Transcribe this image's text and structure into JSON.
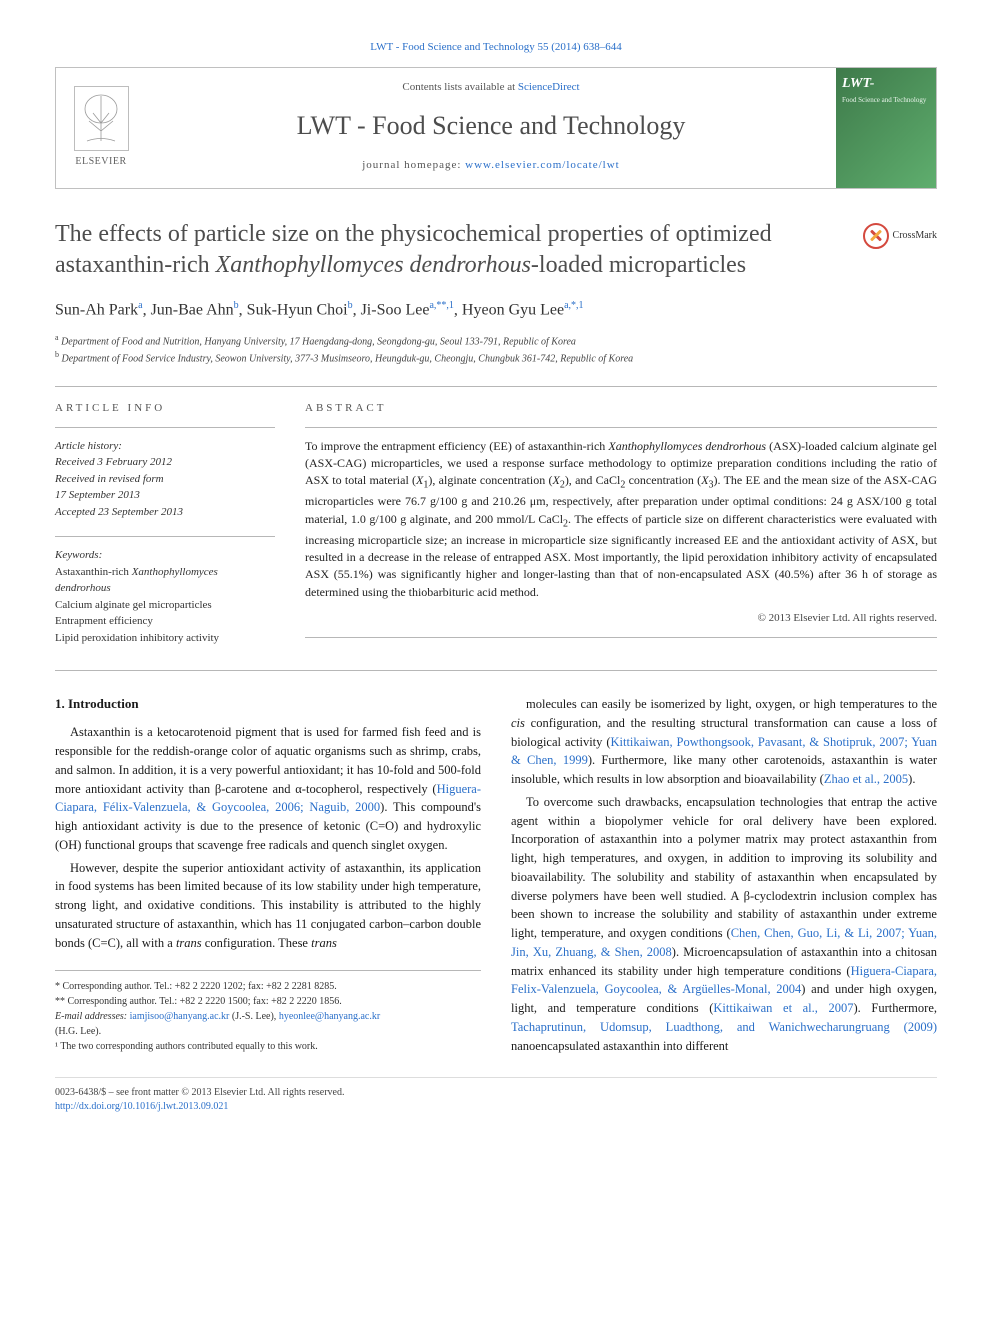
{
  "journal": {
    "ref_prefix": "LWT - Food Science and Technology 55 (2014) 638–644",
    "contents_prefix": "Contents lists available at ",
    "contents_link": "ScienceDirect",
    "name": "LWT - Food Science and Technology",
    "homepage_label": "journal homepage: ",
    "homepage_url": "www.elsevier.com/locate/lwt",
    "elsevier_label": "ELSEVIER",
    "cover_title": "LWT-",
    "cover_sub": "Food Science and Technology"
  },
  "crossmark": {
    "label": "CrossMark"
  },
  "article": {
    "title_pre": "The effects of particle size on the physicochemical properties of optimized astaxanthin-rich ",
    "title_em": "Xanthophyllomyces dendrorhous",
    "title_post": "-loaded microparticles",
    "authors_html": "Sun-Ah Park<sup>a</sup>, Jun-Bae Ahn<sup>b</sup>, Suk-Hyun Choi<sup>b</sup>, Ji-Soo Lee<sup>a,**,1</sup>, Hyeon Gyu Lee<sup>a,*,1</sup>",
    "affiliations": [
      {
        "sup": "a",
        "text": "Department of Food and Nutrition, Hanyang University, 17 Haengdang-dong, Seongdong-gu, Seoul 133-791, Republic of Korea"
      },
      {
        "sup": "b",
        "text": "Department of Food Service Industry, Seowon University, 377-3 Musimseoro, Heungduk-gu, Cheongju, Chungbuk 361-742, Republic of Korea"
      }
    ]
  },
  "info": {
    "label_info": "ARTICLE INFO",
    "label_abstract": "ABSTRACT",
    "history_label": "Article history:",
    "history": [
      "Received 3 February 2012",
      "Received in revised form",
      "17 September 2013",
      "Accepted 23 September 2013"
    ],
    "keywords_label": "Keywords:",
    "keywords": [
      "Astaxanthin-rich <em>Xanthophyllomyces dendrorhous</em>",
      "Calcium alginate gel microparticles",
      "Entrapment efficiency",
      "Lipid peroxidation inhibitory activity"
    ]
  },
  "abstract": {
    "text": "To improve the entrapment efficiency (EE) of astaxanthin-rich <em>Xanthophyllomyces dendrorhous</em> (ASX)-loaded calcium alginate gel (ASX-CAG) microparticles, we used a response surface methodology to optimize preparation conditions including the ratio of ASX to total material (<em>X</em><sub>1</sub>), alginate concentration (<em>X</em><sub>2</sub>), and CaCl<sub>2</sub> concentration (<em>X</em><sub>3</sub>). The EE and the mean size of the ASX-CAG microparticles were 76.7 g/100 g and 210.26 μm, respectively, after preparation under optimal conditions: 24 g ASX/100 g total material, 1.0 g/100 g alginate, and 200 mmol/L CaCl<sub>2</sub>. The effects of particle size on different characteristics were evaluated with increasing microparticle size; an increase in microparticle size significantly increased EE and the antioxidant activity of ASX, but resulted in a decrease in the release of entrapped ASX. Most importantly, the lipid peroxidation inhibitory activity of encapsulated ASX (55.1%) was significantly higher and longer-lasting than that of non-encapsulated ASX (40.5%) after 36 h of storage as determined using the thiobarbituric acid method.",
    "copyright": "© 2013 Elsevier Ltd. All rights reserved."
  },
  "body": {
    "section1_heading": "1. Introduction",
    "p1": "Astaxanthin is a ketocarotenoid pigment that is used for farmed fish feed and is responsible for the reddish-orange color of aquatic organisms such as shrimp, crabs, and salmon. In addition, it is a very powerful antioxidant; it has 10-fold and 500-fold more antioxidant activity than β-carotene and α-tocopherol, respectively (<a>Higuera-Ciapara, Félix-Valenzuela, & Goycoolea, 2006; Naguib, 2000</a>). This compound's high antioxidant activity is due to the presence of ketonic (C=O) and hydroxylic (OH) functional groups that scavenge free radicals and quench singlet oxygen.",
    "p2": "However, despite the superior antioxidant activity of astaxanthin, its application in food systems has been limited because of its low stability under high temperature, strong light, and oxidative conditions. This instability is attributed to the highly unsaturated structure of astaxanthin, which has 11 conjugated carbon–carbon double bonds (C=C), all with a <em>trans</em> configuration. These <em>trans</em>",
    "p3": "molecules can easily be isomerized by light, oxygen, or high temperatures to the <em>cis</em> configuration, and the resulting structural transformation can cause a loss of biological activity (<a>Kittikaiwan, Powthongsook, Pavasant, & Shotipruk, 2007; Yuan & Chen, 1999</a>). Furthermore, like many other carotenoids, astaxanthin is water insoluble, which results in low absorption and bioavailability (<a>Zhao et al., 2005</a>).",
    "p4": "To overcome such drawbacks, encapsulation technologies that entrap the active agent within a biopolymer vehicle for oral delivery have been explored. Incorporation of astaxanthin into a polymer matrix may protect astaxanthin from light, high temperatures, and oxygen, in addition to improving its solubility and bioavailability. The solubility and stability of astaxanthin when encapsulated by diverse polymers have been well studied. A β-cyclodextrin inclusion complex has been shown to increase the solubility and stability of astaxanthin under extreme light, temperature, and oxygen conditions (<a>Chen, Chen, Guo, Li, & Li, 2007; Yuan, Jin, Xu, Zhuang, & Shen, 2008</a>). Microencapsulation of astaxanthin into a chitosan matrix enhanced its stability under high temperature conditions (<a>Higuera-Ciapara, Felix-Valenzuela, Goycoolea, & Argüelles-Monal, 2004</a>) and under high oxygen, light, and temperature conditions (<a>Kittikaiwan et al., 2007</a>). Furthermore, <a>Tachaprutinun, Udomsup, Luadthong, and Wanichwecharungruang (2009)</a> nanoencapsulated astaxanthin into different"
  },
  "footnotes": {
    "f1": "* Corresponding author. Tel.: +82 2 2220 1202; fax: +82 2 2281 8285.",
    "f2": "** Corresponding author. Tel.: +82 2 2220 1500; fax: +82 2 2220 1856.",
    "emails_label": "E-mail addresses: ",
    "email1": "iamjisoo@hanyang.ac.kr",
    "email1_name": " (J.-S. Lee), ",
    "email2": "hyeonlee@hanyang.ac.kr",
    "email2_name": " (H.G. Lee).",
    "f3": "¹ The two corresponding authors contributed equally to this work."
  },
  "bottom": {
    "issn": "0023-6438/$ – see front matter © 2013 Elsevier Ltd. All rights reserved.",
    "doi_label": "http://dx.doi.org/10.1016/j.lwt.2013.09.021"
  },
  "colors": {
    "link": "#2a6fc9",
    "heading_gray": "#4d4d4d",
    "rule": "#b7b7b7",
    "cover_grad_a": "#3e7a4a",
    "cover_grad_b": "#5fae6e"
  }
}
